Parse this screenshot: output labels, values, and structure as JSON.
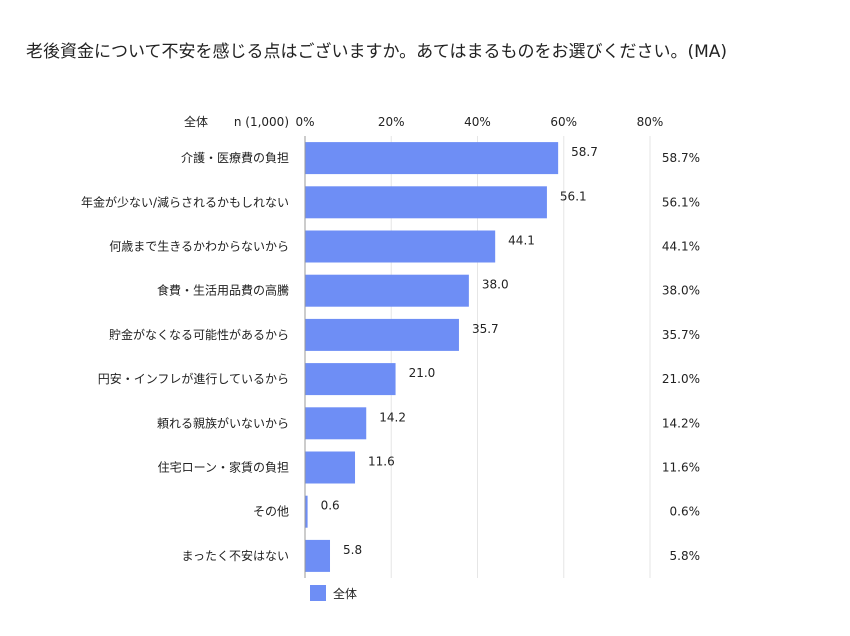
{
  "title": "老後資金について不安を感じる点はございますか。あてはまるものをお選びください。(MA)",
  "header": {
    "group_label": "全体",
    "n_label": "n (1,000)"
  },
  "legend": {
    "label": "全体",
    "color": "#6e8ef5"
  },
  "colors": {
    "bar": "#6e8ef5",
    "grid": "#e6e6e6",
    "axis": "#999999"
  },
  "chart_data": {
    "type": "bar",
    "orientation": "horizontal",
    "xlim": [
      0,
      80
    ],
    "ticks": [
      "0%",
      "20%",
      "40%",
      "60%",
      "80%"
    ],
    "tick_values": [
      0,
      20,
      40,
      60,
      80
    ],
    "categories": [
      "介護・医療費の負担",
      "年金が少ない/減らされるかもしれない",
      "何歳まで生きるかわからないから",
      "食費・生活用品費の高騰",
      "貯金がなくなる可能性があるから",
      "円安・インフレが進行しているから",
      "頼れる親族がいないから",
      "住宅ローン・家賃の負担",
      "その他",
      "まったく不安はない"
    ],
    "series": [
      {
        "name": "全体",
        "values": [
          58.7,
          56.1,
          44.1,
          38.0,
          35.7,
          21.0,
          14.2,
          11.6,
          0.6,
          5.8
        ]
      }
    ],
    "data_labels": [
      "58.7",
      "56.1",
      "44.1",
      "38.0",
      "35.7",
      "21.0",
      "14.2",
      "11.6",
      "0.6",
      "5.8"
    ],
    "right_labels": [
      "58.7%",
      "56.1%",
      "44.1%",
      "38.0%",
      "35.7%",
      "21.0%",
      "14.2%",
      "11.6%",
      "0.6%",
      "5.8%"
    ],
    "grid": true,
    "legend_position": "bottom-left"
  }
}
